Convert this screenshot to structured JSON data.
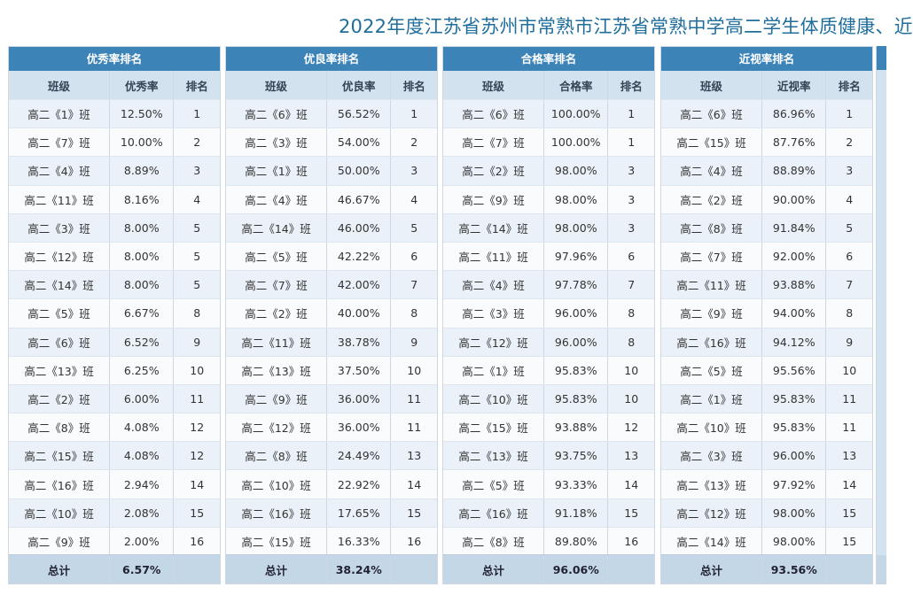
{
  "title": "2022年度江苏省苏州市常熟市江苏省常熟中学高二学生体质健康、近",
  "panels": [
    {
      "title": "优秀率排名",
      "headers": [
        "班级",
        "优秀率",
        "排名"
      ],
      "rows": [
        [
          "高二《1》班",
          "12.50%",
          "1"
        ],
        [
          "高二《7》班",
          "10.00%",
          "2"
        ],
        [
          "高二《4》班",
          "8.89%",
          "3"
        ],
        [
          "高二《11》班",
          "8.16%",
          "4"
        ],
        [
          "高二《3》班",
          "8.00%",
          "5"
        ],
        [
          "高二《12》班",
          "8.00%",
          "5"
        ],
        [
          "高二《14》班",
          "8.00%",
          "5"
        ],
        [
          "高二《5》班",
          "6.67%",
          "8"
        ],
        [
          "高二《6》班",
          "6.52%",
          "9"
        ],
        [
          "高二《13》班",
          "6.25%",
          "10"
        ],
        [
          "高二《2》班",
          "6.00%",
          "11"
        ],
        [
          "高二《8》班",
          "4.08%",
          "12"
        ],
        [
          "高二《15》班",
          "4.08%",
          "12"
        ],
        [
          "高二《16》班",
          "2.94%",
          "14"
        ],
        [
          "高二《10》班",
          "2.08%",
          "15"
        ],
        [
          "高二《9》班",
          "2.00%",
          "16"
        ]
      ],
      "total_label": "总计",
      "total_value": "6.57%"
    },
    {
      "title": "优良率排名",
      "headers": [
        "班级",
        "优良率",
        "排名"
      ],
      "rows": [
        [
          "高二《6》班",
          "56.52%",
          "1"
        ],
        [
          "高二《3》班",
          "54.00%",
          "2"
        ],
        [
          "高二《1》班",
          "50.00%",
          "3"
        ],
        [
          "高二《4》班",
          "46.67%",
          "4"
        ],
        [
          "高二《14》班",
          "46.00%",
          "5"
        ],
        [
          "高二《5》班",
          "42.22%",
          "6"
        ],
        [
          "高二《7》班",
          "42.00%",
          "7"
        ],
        [
          "高二《2》班",
          "40.00%",
          "8"
        ],
        [
          "高二《11》班",
          "38.78%",
          "9"
        ],
        [
          "高二《13》班",
          "37.50%",
          "10"
        ],
        [
          "高二《9》班",
          "36.00%",
          "11"
        ],
        [
          "高二《12》班",
          "36.00%",
          "11"
        ],
        [
          "高二《8》班",
          "24.49%",
          "13"
        ],
        [
          "高二《10》班",
          "22.92%",
          "14"
        ],
        [
          "高二《16》班",
          "17.65%",
          "15"
        ],
        [
          "高二《15》班",
          "16.33%",
          "16"
        ]
      ],
      "total_label": "总计",
      "total_value": "38.24%"
    },
    {
      "title": "合格率排名",
      "headers": [
        "班级",
        "合格率",
        "排名"
      ],
      "rows": [
        [
          "高二《6》班",
          "100.00%",
          "1"
        ],
        [
          "高二《7》班",
          "100.00%",
          "1"
        ],
        [
          "高二《2》班",
          "98.00%",
          "3"
        ],
        [
          "高二《9》班",
          "98.00%",
          "3"
        ],
        [
          "高二《14》班",
          "98.00%",
          "3"
        ],
        [
          "高二《11》班",
          "97.96%",
          "6"
        ],
        [
          "高二《4》班",
          "97.78%",
          "7"
        ],
        [
          "高二《3》班",
          "96.00%",
          "8"
        ],
        [
          "高二《12》班",
          "96.00%",
          "8"
        ],
        [
          "高二《1》班",
          "95.83%",
          "10"
        ],
        [
          "高二《10》班",
          "95.83%",
          "10"
        ],
        [
          "高二《15》班",
          "93.88%",
          "12"
        ],
        [
          "高二《13》班",
          "93.75%",
          "13"
        ],
        [
          "高二《5》班",
          "93.33%",
          "14"
        ],
        [
          "高二《16》班",
          "91.18%",
          "15"
        ],
        [
          "高二《8》班",
          "89.80%",
          "16"
        ]
      ],
      "total_label": "总计",
      "total_value": "96.06%"
    },
    {
      "title": "近视率排名",
      "headers": [
        "班级",
        "近视率",
        "排名"
      ],
      "rows": [
        [
          "高二《6》班",
          "86.96%",
          "1"
        ],
        [
          "高二《15》班",
          "87.76%",
          "2"
        ],
        [
          "高二《4》班",
          "88.89%",
          "3"
        ],
        [
          "高二《2》班",
          "90.00%",
          "4"
        ],
        [
          "高二《8》班",
          "91.84%",
          "5"
        ],
        [
          "高二《7》班",
          "92.00%",
          "6"
        ],
        [
          "高二《11》班",
          "93.88%",
          "7"
        ],
        [
          "高二《9》班",
          "94.00%",
          "8"
        ],
        [
          "高二《16》班",
          "94.12%",
          "9"
        ],
        [
          "高二《5》班",
          "95.56%",
          "10"
        ],
        [
          "高二《1》班",
          "95.83%",
          "11"
        ],
        [
          "高二《10》班",
          "95.83%",
          "11"
        ],
        [
          "高二《3》班",
          "96.00%",
          "13"
        ],
        [
          "高二《13》班",
          "97.92%",
          "14"
        ],
        [
          "高二《12》班",
          "98.00%",
          "15"
        ],
        [
          "高二《14》班",
          "98.00%",
          "15"
        ]
      ],
      "total_label": "总计",
      "total_value": "93.56%"
    }
  ]
}
